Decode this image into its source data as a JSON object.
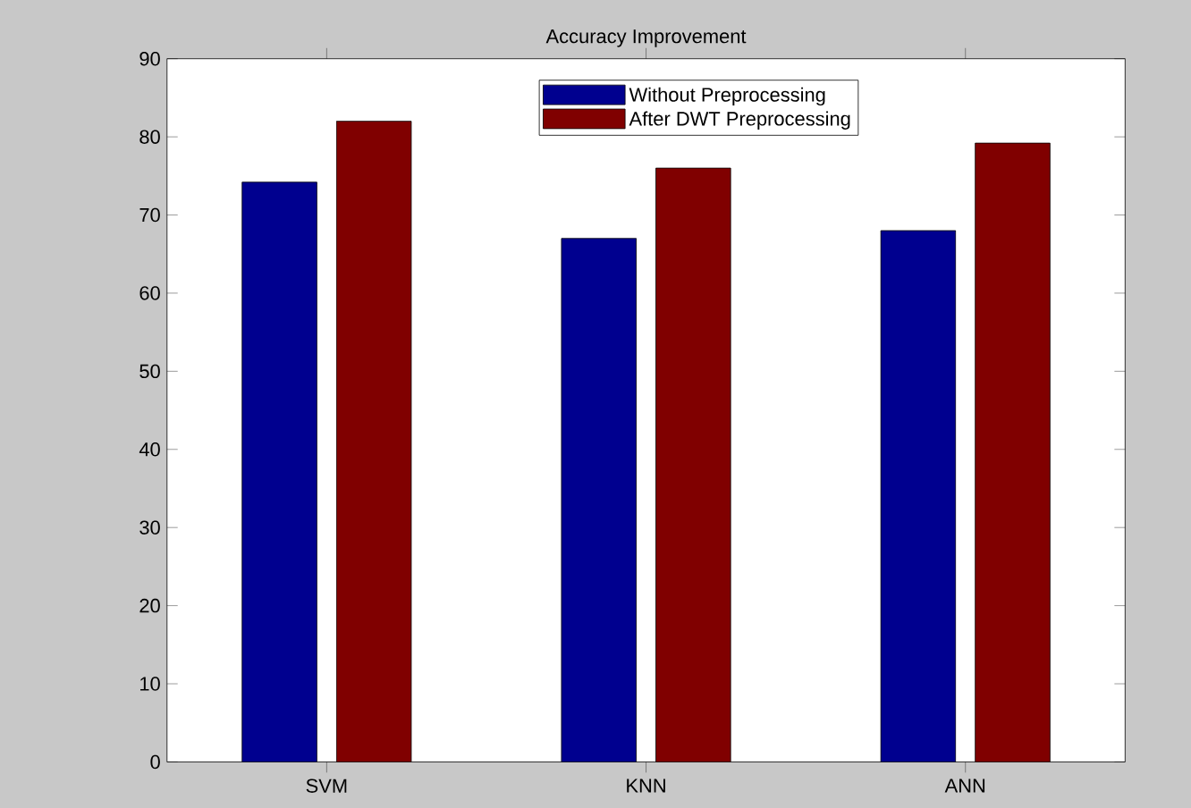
{
  "chart_data": {
    "type": "bar",
    "title": "Accuracy Improvement",
    "categories": [
      "SVM",
      "KNN",
      "ANN"
    ],
    "series": [
      {
        "name": "Without Preprocessing",
        "color": "#00008f",
        "values": [
          74.2,
          67,
          68
        ]
      },
      {
        "name": "After DWT Preprocessing",
        "color": "#800000",
        "values": [
          82,
          76,
          79.2
        ]
      }
    ],
    "ylim": [
      0,
      90
    ],
    "yticks": [
      0,
      10,
      20,
      30,
      40,
      50,
      60,
      70,
      80,
      90
    ],
    "legend": "top"
  }
}
